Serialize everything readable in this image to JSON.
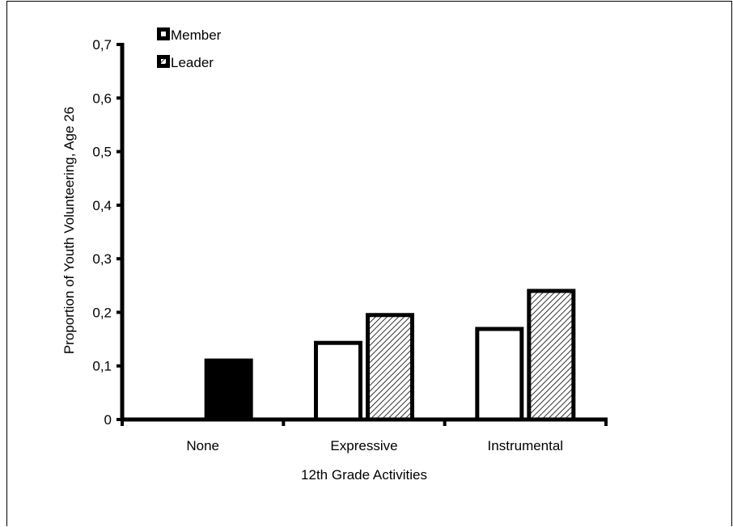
{
  "chart_data": {
    "type": "bar",
    "title": "",
    "xlabel": "12th Grade Activities",
    "ylabel": "Proportion of Youth Volunteering, Age 26",
    "categories": [
      "None",
      "Expressive",
      "Instrumental"
    ],
    "series": [
      {
        "name": "Member",
        "values": [
          null,
          0.143,
          0.169
        ],
        "fill": "#ffffff"
      },
      {
        "name": "Leader",
        "values": [
          null,
          0.195,
          0.24
        ],
        "fill": "hatch"
      }
    ],
    "single_bars": [
      {
        "category": "None",
        "value": 0.11,
        "fill": "#000000"
      }
    ],
    "ylim": [
      0,
      0.7
    ],
    "yticks": [
      0,
      0.1,
      0.2,
      0.3,
      0.4,
      0.5,
      0.6,
      0.7
    ],
    "ytick_labels": [
      "0",
      "0,1",
      "0,2",
      "0,3",
      "0,4",
      "0,5",
      "0,6",
      "0,7"
    ],
    "legend": {
      "placement": "top-left",
      "entries": [
        {
          "label": "Member",
          "marker": "black-square-white-dot"
        },
        {
          "label": "Leader",
          "marker": "black-square-hatch-dot"
        }
      ]
    },
    "grid": false
  }
}
